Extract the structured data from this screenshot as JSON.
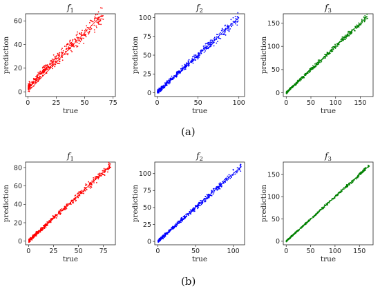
{
  "chart_data": [
    {
      "type": "scatter",
      "row": "a",
      "title_base": "f",
      "title_sub": "1",
      "xlabel": "true",
      "ylabel": "prediction",
      "xlim": [
        -2,
        77
      ],
      "ylim": [
        -4,
        66
      ],
      "xticks": [
        0,
        25,
        50,
        75
      ],
      "yticks": [
        0,
        20,
        40,
        60
      ],
      "color": "#ff0000",
      "line": [
        [
          0,
          0
        ],
        [
          65,
          65
        ]
      ],
      "series": [
        {
          "seed": 11,
          "count": 420,
          "xmax": 66,
          "bias": [
            [
              0,
              3
            ],
            [
              15,
              4
            ],
            [
              30,
              1.5
            ],
            [
              60,
              -1
            ]
          ],
          "noise": 2.4
        }
      ]
    },
    {
      "type": "scatter",
      "row": "a",
      "title_base": "f",
      "title_sub": "2",
      "xlabel": "true",
      "ylabel": "prediction",
      "xlim": [
        -3,
        107
      ],
      "ylim": [
        -5,
        105
      ],
      "xticks": [
        0,
        50,
        100
      ],
      "yticks": [
        0,
        25,
        50,
        75,
        100
      ],
      "color": "#0000ff",
      "line": [
        [
          2,
          2
        ],
        [
          100,
          100
        ]
      ],
      "series": [
        {
          "seed": 23,
          "count": 420,
          "xmax": 100,
          "bias": [
            [
              0,
              1
            ],
            [
              50,
              0
            ],
            [
              100,
              0
            ]
          ],
          "noise": 2.2
        }
      ]
    },
    {
      "type": "scatter",
      "row": "a",
      "title_base": "f",
      "title_sub": "3",
      "xlabel": "true",
      "ylabel": "prediction",
      "xlim": [
        -6,
        176
      ],
      "ylim": [
        -8,
        170
      ],
      "xticks": [
        0,
        50,
        100,
        150
      ],
      "yticks": [
        0,
        50,
        100,
        150
      ],
      "color": "#008000",
      "line": [
        [
          5,
          5
        ],
        [
          165,
          165
        ]
      ],
      "series": [
        {
          "seed": 37,
          "count": 420,
          "xmax": 165,
          "bias": [
            [
              0,
              0
            ],
            [
              165,
              0
            ]
          ],
          "noise": 2.0
        }
      ]
    },
    {
      "type": "scatter",
      "row": "b",
      "title_base": "f",
      "title_sub": "1",
      "xlabel": "true",
      "ylabel": "prediction",
      "xlim": [
        -3,
        87
      ],
      "ylim": [
        -4,
        86
      ],
      "xticks": [
        0,
        25,
        50,
        75
      ],
      "yticks": [
        0,
        20,
        40,
        60,
        80
      ],
      "color": "#ff0000",
      "line": [
        [
          0,
          0
        ],
        [
          82,
          82
        ]
      ],
      "series": [
        {
          "seed": 41,
          "count": 420,
          "xmax": 82,
          "bias": [
            [
              0,
              0
            ],
            [
              82,
              0
            ]
          ],
          "noise": 1.4
        }
      ]
    },
    {
      "type": "scatter",
      "row": "b",
      "title_base": "f",
      "title_sub": "2",
      "xlabel": "true",
      "ylabel": "prediction",
      "xlim": [
        -4,
        115
      ],
      "ylim": [
        -5,
        117
      ],
      "xticks": [
        0,
        50,
        100
      ],
      "yticks": [
        0,
        25,
        50,
        75,
        100
      ],
      "color": "#0000ff",
      "line": [
        [
          2,
          2
        ],
        [
          110,
          110
        ]
      ],
      "series": [
        {
          "seed": 53,
          "count": 420,
          "xmax": 110,
          "bias": [
            [
              0,
              0
            ],
            [
              110,
              0
            ]
          ],
          "noise": 1.8
        }
      ]
    },
    {
      "type": "scatter",
      "row": "b",
      "title_base": "f",
      "title_sub": "3",
      "xlabel": "true",
      "ylabel": "prediction",
      "xlim": [
        -6,
        178
      ],
      "ylim": [
        -8,
        178
      ],
      "xticks": [
        0,
        50,
        100,
        150
      ],
      "yticks": [
        0,
        50,
        100,
        150
      ],
      "color": "#008000",
      "line": [
        [
          3,
          3
        ],
        [
          170,
          170
        ]
      ],
      "series": [
        {
          "seed": 67,
          "count": 420,
          "xmax": 170,
          "bias": [
            [
              0,
              0
            ],
            [
              170,
              0
            ]
          ],
          "noise": 1.2
        }
      ]
    }
  ],
  "captions": {
    "a": "(a)",
    "b": "(b)"
  }
}
